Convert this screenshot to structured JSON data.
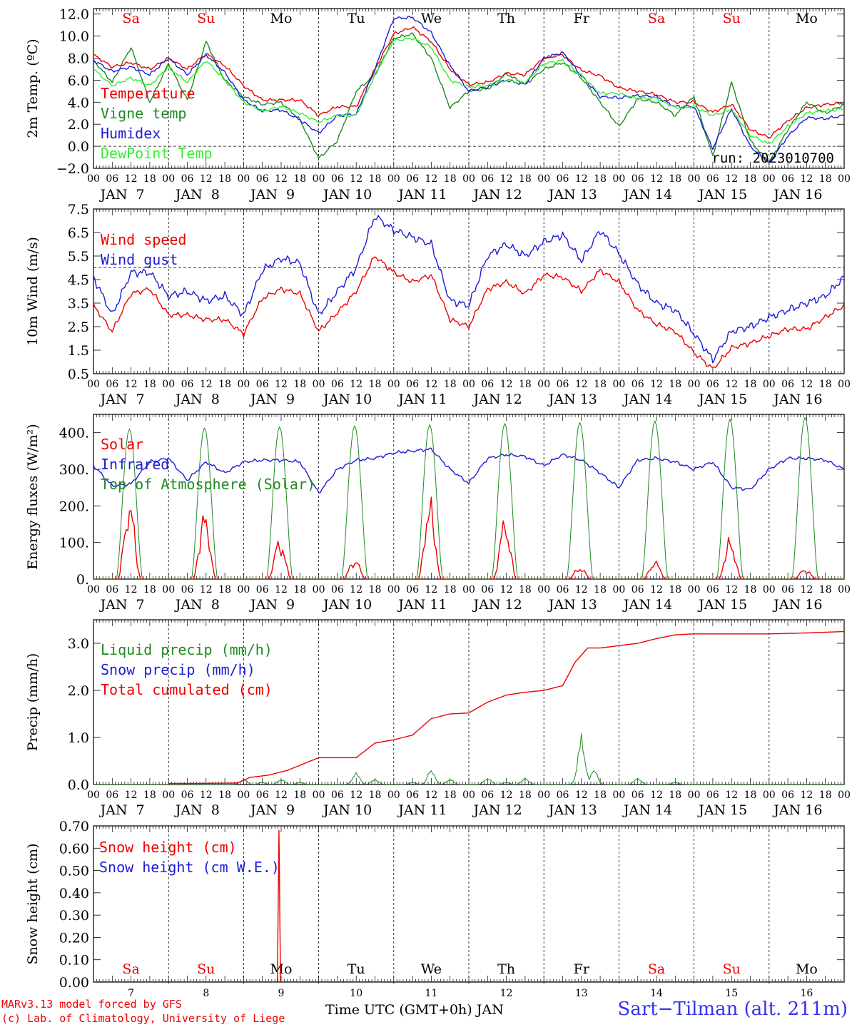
{
  "colors": {
    "red": "#ee0000",
    "green": "#1f8a1f",
    "blue": "#1c1cd8",
    "lightgreen": "#33ee33",
    "weekend": "#ee0000",
    "weekday": "#000000"
  },
  "days": [
    {
      "dow": "Sa",
      "weekend": true,
      "date": "JAN  7",
      "num": "7"
    },
    {
      "dow": "Su",
      "weekend": true,
      "date": "JAN  8",
      "num": "8"
    },
    {
      "dow": "Mo",
      "weekend": false,
      "date": "JAN  9",
      "num": "9"
    },
    {
      "dow": "Tu",
      "weekend": false,
      "date": "JAN 10",
      "num": "10"
    },
    {
      "dow": "We",
      "weekend": false,
      "date": "JAN 11",
      "num": "11"
    },
    {
      "dow": "Th",
      "weekend": false,
      "date": "JAN 12",
      "num": "12"
    },
    {
      "dow": "Fr",
      "weekend": false,
      "date": "JAN 13",
      "num": "13"
    },
    {
      "dow": "Sa",
      "weekend": true,
      "date": "JAN 14",
      "num": "14"
    },
    {
      "dow": "Su",
      "weekend": true,
      "date": "JAN 15",
      "num": "15"
    },
    {
      "dow": "Mo",
      "weekend": false,
      "date": "JAN 16",
      "num": "16"
    }
  ],
  "hour_labels": [
    "00",
    "06",
    "12",
    "18"
  ],
  "final_hour_label": "00",
  "footer": {
    "model": "MARv3.13 model forced by GFS",
    "credit": "(c) Lab. of Climatology, University of Liege",
    "xlabel": "Time UTC (GMT+0h) JAN",
    "station": "Sart−Tilman (alt. 211m)"
  },
  "chart_data": [
    {
      "type": "line",
      "ylabel": "2m Temp. (ºC)",
      "ylim": [
        -2.0,
        12.5
      ],
      "yticks": [
        -2.0,
        0.0,
        2.0,
        4.0,
        6.0,
        8.0,
        10.0,
        12.0
      ],
      "ytick_labels": [
        "−2.0",
        "0.0",
        "2.0",
        "4.0",
        "6.0",
        "8.0",
        "10.0",
        "12.0"
      ],
      "reference_line": 0.0,
      "run_label": "run: 2023010700",
      "x": [
        0,
        6,
        12,
        18,
        24,
        30,
        36,
        42,
        48,
        54,
        60,
        66,
        72,
        78,
        84,
        90,
        96,
        102,
        108,
        114,
        120,
        126,
        132,
        138,
        144,
        150,
        156,
        162,
        168,
        174,
        180,
        186,
        192,
        198,
        204,
        210,
        216,
        222,
        228,
        234,
        240
      ],
      "series": [
        {
          "name": "Temperature",
          "color": "red",
          "values": [
            8.3,
            7.2,
            7.6,
            7.0,
            8.0,
            7.0,
            8.4,
            7.3,
            5.5,
            4.2,
            4.2,
            4.2,
            2.8,
            3.6,
            3.6,
            7.0,
            10.2,
            10.8,
            9.5,
            7.0,
            5.6,
            5.8,
            6.6,
            6.5,
            8.0,
            8.3,
            6.9,
            6.4,
            5.3,
            5.0,
            4.7,
            4.0,
            4.0,
            3.1,
            3.8,
            1.5,
            0.8,
            2.3,
            3.5,
            3.8,
            3.9
          ]
        },
        {
          "name": "Vigne temp",
          "color": "green",
          "values": [
            7.8,
            5.8,
            9.0,
            4.0,
            7.5,
            4.2,
            9.5,
            6.0,
            4.5,
            3.8,
            4.0,
            2.4,
            -1.1,
            0.5,
            5.0,
            6.5,
            9.8,
            10.2,
            8.0,
            3.5,
            5.0,
            5.2,
            6.6,
            5.6,
            7.0,
            7.6,
            6.2,
            4.0,
            1.8,
            4.3,
            4.0,
            2.8,
            4.5,
            -0.9,
            5.8,
            0.5,
            -1.5,
            1.5,
            4.0,
            3.0,
            3.8
          ]
        },
        {
          "name": "Humidex",
          "color": "blue",
          "values": [
            7.8,
            6.8,
            7.2,
            6.5,
            8.0,
            6.5,
            8.3,
            6.7,
            4.2,
            3.2,
            3.3,
            2.4,
            1.2,
            2.8,
            2.9,
            7.0,
            11.6,
            11.7,
            10.3,
            7.3,
            5.0,
            5.4,
            6.0,
            5.6,
            8.0,
            8.5,
            6.4,
            4.5,
            4.4,
            4.6,
            4.5,
            3.6,
            3.6,
            -0.2,
            3.4,
            0.0,
            -1.5,
            0.9,
            2.6,
            2.5,
            2.8
          ]
        },
        {
          "name": "DewPoint Temp",
          "color": "lightgreen",
          "values": [
            7.0,
            5.5,
            6.2,
            5.5,
            7.2,
            5.8,
            7.8,
            6.0,
            4.0,
            3.2,
            3.6,
            3.0,
            2.2,
            2.8,
            2.8,
            6.5,
            9.6,
            9.8,
            9.0,
            6.0,
            5.4,
            5.5,
            6.0,
            5.8,
            7.5,
            7.8,
            6.4,
            4.8,
            4.8,
            4.3,
            4.4,
            3.5,
            3.6,
            2.8,
            3.3,
            1.0,
            0.2,
            1.8,
            3.0,
            3.2,
            3.4
          ]
        }
      ]
    },
    {
      "type": "line",
      "ylabel": "10m Wind (m/s)",
      "ylim": [
        0.5,
        7.5
      ],
      "yticks": [
        0.5,
        1.5,
        2.5,
        3.5,
        4.5,
        5.5,
        6.5,
        7.5
      ],
      "ytick_labels": [
        "0.5",
        "1.5",
        "2.5",
        "3.5",
        "4.5",
        "5.5",
        "6.5",
        "7.5"
      ],
      "reference_line": 5.0,
      "x": [
        0,
        6,
        12,
        18,
        24,
        30,
        36,
        42,
        48,
        54,
        60,
        66,
        72,
        78,
        84,
        90,
        96,
        102,
        108,
        114,
        120,
        126,
        132,
        138,
        144,
        150,
        156,
        162,
        168,
        174,
        180,
        186,
        192,
        198,
        204,
        210,
        216,
        222,
        228,
        234,
        240
      ],
      "series": [
        {
          "name": "Wind speed",
          "color": "red",
          "values": [
            3.4,
            2.3,
            3.9,
            4.1,
            3.0,
            3.0,
            2.8,
            2.8,
            2.2,
            3.7,
            4.1,
            3.9,
            2.3,
            3.1,
            4.0,
            5.5,
            4.8,
            4.4,
            4.7,
            2.8,
            2.5,
            4.1,
            4.4,
            3.9,
            4.7,
            4.6,
            4.0,
            4.9,
            4.4,
            3.2,
            2.6,
            2.3,
            1.4,
            0.7,
            1.6,
            1.8,
            2.1,
            2.4,
            2.4,
            2.9,
            3.4
          ]
        },
        {
          "name": "Wind gust",
          "color": "blue",
          "values": [
            4.6,
            3.0,
            4.8,
            4.8,
            3.8,
            4.0,
            3.6,
            3.8,
            3.0,
            4.9,
            5.4,
            5.2,
            3.0,
            4.0,
            5.0,
            7.2,
            6.6,
            6.3,
            6.0,
            3.6,
            3.4,
            5.5,
            6.0,
            5.5,
            6.1,
            6.4,
            5.3,
            6.6,
            5.6,
            4.3,
            3.5,
            3.2,
            2.2,
            1.1,
            2.3,
            2.5,
            2.9,
            3.2,
            3.5,
            3.8,
            4.6
          ]
        }
      ]
    },
    {
      "type": "line",
      "ylabel": "Energy fluxes (W/m²)",
      "ylim": [
        0,
        450
      ],
      "yticks": [
        0,
        100,
        200,
        300,
        400
      ],
      "ytick_labels": [
        "0.",
        "100.",
        "200.",
        "300.",
        "400."
      ],
      "series": [
        {
          "name": "Solar",
          "color": "red",
          "daily_peaks": [
            235,
            200,
            120,
            60,
            235,
            180,
            35,
            55,
            120,
            30
          ]
        },
        {
          "name": "Infrared",
          "color": "blue",
          "x": [
            0,
            6,
            12,
            18,
            24,
            30,
            36,
            42,
            48,
            54,
            60,
            66,
            72,
            78,
            84,
            90,
            96,
            102,
            108,
            114,
            120,
            126,
            132,
            138,
            144,
            150,
            156,
            162,
            168,
            174,
            180,
            186,
            192,
            198,
            204,
            210,
            216,
            222,
            228,
            234,
            240
          ],
          "values": [
            310,
            255,
            260,
            320,
            330,
            270,
            320,
            290,
            320,
            325,
            325,
            320,
            235,
            300,
            325,
            330,
            345,
            350,
            355,
            300,
            262,
            330,
            340,
            335,
            310,
            340,
            325,
            290,
            250,
            325,
            330,
            320,
            300,
            320,
            250,
            245,
            300,
            330,
            330,
            325,
            300
          ]
        },
        {
          "name": "Top of Atmosphere (Solar)",
          "color": "green",
          "daily_peaks": [
            410,
            413,
            416,
            419,
            422,
            425,
            428,
            432,
            437,
            442
          ]
        }
      ]
    },
    {
      "type": "line",
      "ylabel": "Precip (mm/h)",
      "ylim": [
        0,
        3.5
      ],
      "yticks": [
        0.0,
        1.0,
        2.0,
        3.0
      ],
      "ytick_labels": [
        "0.0",
        "1.0",
        "2.0",
        "3.0"
      ],
      "series": [
        {
          "name": "Liquid precip (mm/h)",
          "color": "green",
          "events": [
            [
              48,
              0.12
            ],
            [
              54,
              0.05
            ],
            [
              60,
              0.12
            ],
            [
              66,
              0.05
            ],
            [
              84,
              0.28
            ],
            [
              90,
              0.12
            ],
            [
              102,
              0.05
            ],
            [
              108,
              0.35
            ],
            [
              114,
              0.12
            ],
            [
              126,
              0.15
            ],
            [
              132,
              0.05
            ],
            [
              138,
              0.15
            ],
            [
              156,
              1.1
            ],
            [
              160,
              0.35
            ],
            [
              174,
              0.15
            ],
            [
              186,
              0.05
            ]
          ]
        },
        {
          "name": "Snow precip (mm/h)",
          "color": "blue",
          "events": []
        },
        {
          "name": "Total cumulated (cm)",
          "color": "red",
          "x": [
            0,
            24,
            46,
            50,
            56,
            62,
            72,
            84,
            90,
            96,
            102,
            108,
            114,
            120,
            126,
            132,
            138,
            144,
            150,
            154,
            158,
            162,
            168,
            174,
            180,
            186,
            192,
            198,
            204,
            216,
            228,
            240
          ],
          "values": [
            null,
            0.02,
            0.03,
            0.15,
            0.2,
            0.3,
            0.57,
            0.57,
            0.88,
            0.95,
            1.05,
            1.4,
            1.5,
            1.52,
            1.75,
            1.9,
            1.96,
            2.0,
            2.1,
            2.6,
            2.9,
            2.9,
            2.95,
            3.0,
            3.1,
            3.18,
            3.2,
            3.2,
            3.2,
            3.2,
            3.22,
            3.25
          ]
        }
      ]
    },
    {
      "type": "line",
      "ylabel": "Snow height (cm)",
      "ylim": [
        0,
        0.7
      ],
      "yticks": [
        0.0,
        0.1,
        0.2,
        0.3,
        0.4,
        0.5,
        0.6,
        0.7
      ],
      "ytick_labels": [
        "0.00",
        "0.10",
        "0.20",
        "0.30",
        "0.40",
        "0.50",
        "0.60",
        "0.70"
      ],
      "series": [
        {
          "name": "Snow height (cm)",
          "color": "red",
          "x": [
            0,
            58.8,
            59.3,
            59.8,
            240
          ],
          "values": [
            0,
            0,
            0.68,
            0,
            0
          ]
        },
        {
          "name": "Snow height (cm W.E.)",
          "color": "blue",
          "x": [
            0,
            240
          ],
          "values": [
            0,
            0
          ]
        }
      ]
    }
  ]
}
